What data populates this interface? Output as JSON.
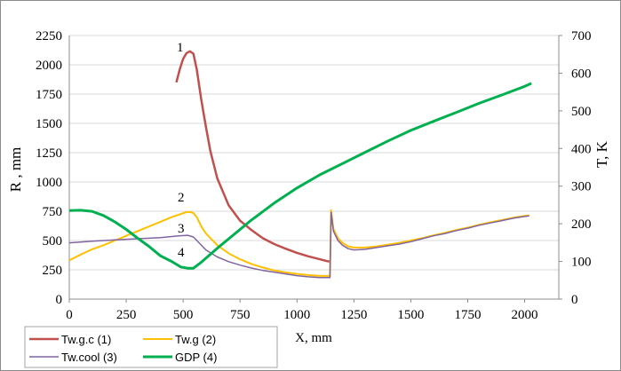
{
  "chart_data": {
    "type": "line",
    "xlabel": "X, mm",
    "ylabel_left": "R , mm",
    "ylabel_right": "T, K",
    "xlim": [
      0,
      2150
    ],
    "ylim_left": [
      0,
      2250
    ],
    "ylim_right": [
      0,
      700
    ],
    "x_ticks": [
      "0",
      "250",
      "500",
      "750",
      "1000",
      "1250",
      "1500",
      "1750",
      "2000"
    ],
    "y_left_ticks": [
      "0",
      "250",
      "500",
      "750",
      "1000",
      "1250",
      "1500",
      "1750",
      "2000",
      "2250"
    ],
    "y_right_ticks": [
      "0",
      "100",
      "200",
      "300",
      "400",
      "500",
      "600",
      "700"
    ],
    "grid": "horizontal",
    "legend_position": "bottom-left",
    "series": [
      {
        "name": "Tw.g.c (1)",
        "color": "#c0504d",
        "axis": "left",
        "points": [
          [
            470,
            1850
          ],
          [
            485,
            1960
          ],
          [
            500,
            2050
          ],
          [
            515,
            2100
          ],
          [
            530,
            2115
          ],
          [
            545,
            2095
          ],
          [
            560,
            1960
          ],
          [
            580,
            1700
          ],
          [
            600,
            1470
          ],
          [
            620,
            1260
          ],
          [
            650,
            1030
          ],
          [
            700,
            800
          ],
          [
            750,
            670
          ],
          [
            800,
            590
          ],
          [
            850,
            520
          ],
          [
            900,
            470
          ],
          [
            950,
            430
          ],
          [
            1000,
            395
          ],
          [
            1050,
            365
          ],
          [
            1100,
            340
          ],
          [
            1130,
            325
          ],
          [
            1148,
            320
          ]
        ]
      },
      {
        "name": "Tw.g (2)",
        "color": "#ffc000",
        "axis": "left",
        "points": [
          [
            0,
            330
          ],
          [
            50,
            380
          ],
          [
            100,
            425
          ],
          [
            150,
            460
          ],
          [
            200,
            500
          ],
          [
            250,
            540
          ],
          [
            300,
            580
          ],
          [
            350,
            620
          ],
          [
            400,
            660
          ],
          [
            450,
            700
          ],
          [
            480,
            720
          ],
          [
            510,
            740
          ],
          [
            530,
            745
          ],
          [
            545,
            735
          ],
          [
            560,
            700
          ],
          [
            580,
            620
          ],
          [
            600,
            560
          ],
          [
            650,
            460
          ],
          [
            700,
            390
          ],
          [
            750,
            340
          ],
          [
            800,
            300
          ],
          [
            850,
            270
          ],
          [
            900,
            245
          ],
          [
            950,
            228
          ],
          [
            1000,
            215
          ],
          [
            1050,
            205
          ],
          [
            1100,
            198
          ],
          [
            1145,
            198
          ],
          [
            1150,
            760
          ],
          [
            1160,
            600
          ],
          [
            1180,
            520
          ],
          [
            1200,
            480
          ],
          [
            1225,
            450
          ],
          [
            1250,
            440
          ],
          [
            1300,
            440
          ],
          [
            1350,
            450
          ],
          [
            1400,
            465
          ],
          [
            1450,
            480
          ],
          [
            1500,
            500
          ],
          [
            1550,
            520
          ],
          [
            1600,
            545
          ],
          [
            1650,
            565
          ],
          [
            1700,
            590
          ],
          [
            1750,
            610
          ],
          [
            1800,
            635
          ],
          [
            1850,
            655
          ],
          [
            1900,
            675
          ],
          [
            1950,
            695
          ],
          [
            2000,
            710
          ],
          [
            2020,
            715
          ]
        ]
      },
      {
        "name": "Tw.cool (3)",
        "color": "#8064a2",
        "axis": "left",
        "points": [
          [
            0,
            480
          ],
          [
            100,
            495
          ],
          [
            200,
            505
          ],
          [
            300,
            515
          ],
          [
            400,
            525
          ],
          [
            480,
            540
          ],
          [
            520,
            545
          ],
          [
            545,
            530
          ],
          [
            570,
            480
          ],
          [
            600,
            420
          ],
          [
            650,
            360
          ],
          [
            700,
            320
          ],
          [
            750,
            290
          ],
          [
            800,
            265
          ],
          [
            850,
            245
          ],
          [
            900,
            230
          ],
          [
            950,
            215
          ],
          [
            1000,
            200
          ],
          [
            1050,
            190
          ],
          [
            1100,
            183
          ],
          [
            1145,
            183
          ],
          [
            1150,
            740
          ],
          [
            1160,
            580
          ],
          [
            1180,
            500
          ],
          [
            1200,
            460
          ],
          [
            1225,
            430
          ],
          [
            1250,
            420
          ],
          [
            1300,
            425
          ],
          [
            1350,
            440
          ],
          [
            1400,
            455
          ],
          [
            1450,
            470
          ],
          [
            1500,
            490
          ],
          [
            1550,
            515
          ],
          [
            1600,
            540
          ],
          [
            1650,
            560
          ],
          [
            1700,
            585
          ],
          [
            1750,
            605
          ],
          [
            1800,
            630
          ],
          [
            1850,
            650
          ],
          [
            1900,
            670
          ],
          [
            1950,
            690
          ],
          [
            2000,
            705
          ],
          [
            2020,
            710
          ]
        ]
      },
      {
        "name": "GDP (4)",
        "color": "#00b050",
        "axis": "right",
        "points": [
          [
            0,
            235
          ],
          [
            50,
            236
          ],
          [
            100,
            233
          ],
          [
            150,
            222
          ],
          [
            200,
            205
          ],
          [
            250,
            185
          ],
          [
            300,
            162
          ],
          [
            350,
            140
          ],
          [
            400,
            115
          ],
          [
            450,
            100
          ],
          [
            490,
            85
          ],
          [
            520,
            82
          ],
          [
            545,
            82
          ],
          [
            580,
            98
          ],
          [
            650,
            135
          ],
          [
            700,
            160
          ],
          [
            800,
            210
          ],
          [
            900,
            255
          ],
          [
            1000,
            295
          ],
          [
            1100,
            330
          ],
          [
            1200,
            360
          ],
          [
            1300,
            390
          ],
          [
            1400,
            420
          ],
          [
            1500,
            448
          ],
          [
            1600,
            472
          ],
          [
            1700,
            496
          ],
          [
            1800,
            520
          ],
          [
            1900,
            542
          ],
          [
            2000,
            565
          ],
          [
            2030,
            573
          ]
        ]
      }
    ],
    "annotations": [
      "1",
      "2",
      "3",
      "4"
    ]
  },
  "legend": {
    "items": [
      {
        "label": "Tw.g.c (1)",
        "color": "#c0504d",
        "width": 2.5
      },
      {
        "label": "Tw.g (2)",
        "color": "#ffc000",
        "width": 2
      },
      {
        "label": "Tw.cool (3)",
        "color": "#8064a2",
        "width": 1.5
      },
      {
        "label": "GDP (4)",
        "color": "#00b050",
        "width": 3
      }
    ]
  }
}
